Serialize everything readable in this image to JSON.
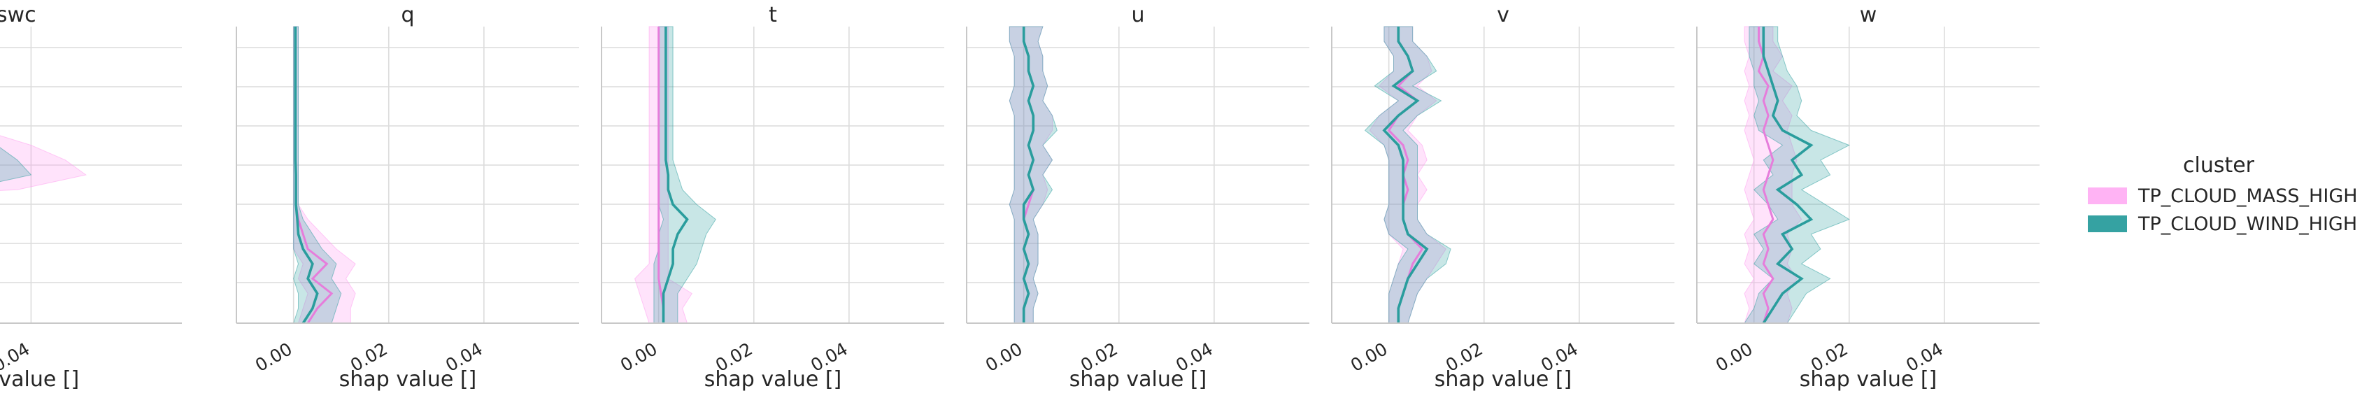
{
  "chart_data": {
    "type": "line",
    "xlabel": "shap value []",
    "xticks": [
      0.0,
      0.02,
      0.04
    ],
    "xtick_labels": [
      "0.00",
      "0.02",
      "0.04"
    ],
    "xlim": [
      -0.012,
      0.06
    ],
    "ylim": [
      0,
      1
    ],
    "grid": true,
    "legend": {
      "title": "cluster",
      "placement": "right",
      "entries": [
        {
          "name": "TP_CLOUD_MASS_HIGH",
          "color": "#ff99f0"
        },
        {
          "name": "TP_CLOUD_WIND_HIGH",
          "color": "#2a9d9d"
        }
      ]
    },
    "series_colors": {
      "mass": "#ff99f0",
      "wind": "#2a9d9d"
    },
    "panels": [
      {
        "title": "cswc",
        "xlim": [
          0.012,
          0.062
        ],
        "y": [
          0.0,
          0.05,
          0.1,
          0.15,
          0.2,
          0.25,
          0.3,
          0.35,
          0.4,
          0.45,
          0.5,
          0.55,
          0.6,
          0.65,
          0.7,
          0.75,
          0.8,
          0.85,
          0.9,
          0.95,
          1.0
        ],
        "mass": [
          -0.02,
          -0.02,
          -0.02,
          -0.02,
          -0.02,
          0.0,
          0.004,
          -0.01,
          -0.02,
          0.02,
          0.032,
          0.03,
          0.026,
          0.018,
          0.006,
          -0.01,
          -0.02,
          -0.02,
          -0.02,
          -0.02,
          -0.02
        ],
        "mass_lo": [
          -0.03,
          -0.03,
          -0.03,
          -0.03,
          -0.03,
          -0.01,
          -0.006,
          -0.02,
          -0.03,
          0.005,
          0.018,
          0.016,
          0.012,
          0.006,
          -0.004,
          -0.02,
          -0.03,
          -0.03,
          -0.03,
          -0.03,
          -0.03
        ],
        "mass_hi": [
          -0.01,
          -0.01,
          -0.01,
          -0.01,
          -0.01,
          0.01,
          0.022,
          0.0,
          -0.01,
          0.038,
          0.048,
          0.045,
          0.04,
          0.033,
          0.018,
          0.0,
          -0.01,
          -0.01,
          -0.01,
          -0.01,
          -0.01
        ],
        "wind": [
          -0.02,
          -0.02,
          -0.02,
          -0.02,
          -0.02,
          0.0,
          0.002,
          -0.01,
          -0.02,
          0.016,
          0.03,
          0.028,
          0.024,
          0.02,
          0.008,
          -0.01,
          -0.02,
          -0.02,
          -0.02,
          -0.02,
          -0.02
        ],
        "wind_lo": [
          -0.03,
          -0.03,
          -0.03,
          -0.03,
          -0.03,
          -0.01,
          -0.008,
          -0.02,
          -0.03,
          0.004,
          0.018,
          0.016,
          0.014,
          0.01,
          -0.002,
          -0.02,
          -0.03,
          -0.03,
          -0.03,
          -0.03,
          -0.03
        ],
        "wind_hi": [
          -0.01,
          -0.01,
          -0.01,
          -0.01,
          -0.01,
          0.012,
          0.03,
          0.0,
          -0.01,
          0.03,
          0.04,
          0.038,
          0.035,
          0.03,
          0.018,
          0.0,
          -0.01,
          -0.01,
          -0.01,
          -0.01,
          -0.01
        ]
      },
      {
        "title": "q",
        "y": [
          0.0,
          0.05,
          0.1,
          0.15,
          0.2,
          0.25,
          0.3,
          0.35,
          0.4,
          0.45,
          0.5,
          0.55,
          0.6,
          0.65,
          0.7,
          0.75,
          0.8,
          0.85,
          0.9,
          0.95,
          1.0
        ],
        "mass": [
          0.003,
          0.005,
          0.008,
          0.004,
          0.007,
          0.003,
          0.002,
          0.001,
          0.0005,
          0.0005,
          0.0005,
          0.0004,
          0.0004,
          0.0004,
          0.0004,
          0.0004,
          0.0004,
          0.0004,
          0.0004,
          0.0004,
          0.0004
        ],
        "mass_lo": [
          0.001,
          0.002,
          0.003,
          0.001,
          0.002,
          0.0,
          0.0,
          0.0,
          0.0,
          0.0,
          0.0,
          0.0,
          0.0,
          0.0,
          0.0,
          0.0,
          0.0,
          0.0,
          0.0,
          0.0,
          0.0
        ],
        "mass_hi": [
          0.012,
          0.012,
          0.013,
          0.011,
          0.013,
          0.009,
          0.006,
          0.003,
          0.001,
          0.001,
          0.001,
          0.001,
          0.001,
          0.001,
          0.001,
          0.001,
          0.001,
          0.001,
          0.001,
          0.001,
          0.001
        ],
        "wind": [
          0.002,
          0.004,
          0.005,
          0.003,
          0.004,
          0.002,
          0.001,
          0.0008,
          0.0005,
          0.0005,
          0.0005,
          0.0004,
          0.0004,
          0.0004,
          0.0004,
          0.0004,
          0.0004,
          0.0004,
          0.0004,
          0.0004,
          0.0004
        ],
        "wind_lo": [
          0.0,
          0.001,
          0.001,
          0.0,
          0.001,
          0.0,
          0.0,
          0.0,
          0.0,
          0.0,
          0.0,
          0.0,
          0.0,
          0.0,
          0.0,
          0.0,
          0.0,
          0.0,
          0.0,
          0.0,
          0.0
        ],
        "wind_hi": [
          0.008,
          0.009,
          0.01,
          0.008,
          0.009,
          0.006,
          0.004,
          0.002,
          0.001,
          0.001,
          0.001,
          0.001,
          0.001,
          0.001,
          0.001,
          0.001,
          0.001,
          0.001,
          0.001,
          0.001,
          0.001
        ]
      },
      {
        "title": "t",
        "y": [
          0.0,
          0.05,
          0.1,
          0.15,
          0.2,
          0.25,
          0.3,
          0.35,
          0.4,
          0.45,
          0.5,
          0.55,
          0.6,
          0.65,
          0.7,
          0.75,
          0.8,
          0.85,
          0.9,
          0.95,
          1.0
        ],
        "mass": [
          0.001,
          0.001,
          0.0005,
          0.0,
          0.0,
          0.0,
          0.0,
          0.0,
          0.0,
          0.0,
          0.0,
          0.0,
          0.0,
          0.0,
          0.0,
          0.0,
          0.0,
          0.0,
          0.0,
          0.0,
          0.0
        ],
        "mass_lo": [
          -0.002,
          -0.003,
          -0.004,
          -0.005,
          -0.002,
          -0.002,
          -0.002,
          -0.002,
          -0.002,
          -0.002,
          -0.002,
          -0.002,
          -0.002,
          -0.002,
          -0.002,
          -0.002,
          -0.002,
          -0.002,
          -0.002,
          -0.002,
          -0.002
        ],
        "mass_hi": [
          0.006,
          0.005,
          0.007,
          0.002,
          0.002,
          0.002,
          0.002,
          0.002,
          0.002,
          0.002,
          0.002,
          0.002,
          0.002,
          0.002,
          0.002,
          0.002,
          0.002,
          0.002,
          0.002,
          0.002,
          0.002
        ],
        "wind": [
          0.001,
          0.001,
          0.001,
          0.002,
          0.003,
          0.003,
          0.004,
          0.006,
          0.003,
          0.002,
          0.002,
          0.0015,
          0.0015,
          0.0015,
          0.0015,
          0.0015,
          0.0015,
          0.0015,
          0.0015,
          0.0015,
          0.0015
        ],
        "wind_lo": [
          -0.001,
          -0.001,
          -0.001,
          -0.001,
          -0.001,
          0.0,
          0.0,
          0.001,
          0.0,
          0.0,
          0.0,
          0.0,
          0.0,
          0.0,
          0.0,
          0.0,
          0.0,
          0.0,
          0.0,
          0.0,
          0.0
        ],
        "wind_hi": [
          0.004,
          0.004,
          0.004,
          0.006,
          0.008,
          0.009,
          0.01,
          0.012,
          0.008,
          0.005,
          0.004,
          0.003,
          0.003,
          0.003,
          0.003,
          0.003,
          0.003,
          0.003,
          0.003,
          0.003,
          0.003
        ]
      },
      {
        "title": "u",
        "y": [
          0.0,
          0.05,
          0.1,
          0.15,
          0.2,
          0.25,
          0.3,
          0.35,
          0.4,
          0.45,
          0.5,
          0.55,
          0.6,
          0.65,
          0.7,
          0.75,
          0.8,
          0.85,
          0.9,
          0.95,
          1.0
        ],
        "mass": [
          0.0,
          0.0,
          0.001,
          0.0,
          0.001,
          0.0,
          0.001,
          0.0,
          0.001,
          0.002,
          0.001,
          0.002,
          0.001,
          0.002,
          0.002,
          0.001,
          0.002,
          0.001,
          0.001,
          0.0,
          0.0
        ],
        "mass_lo": [
          -0.002,
          -0.002,
          -0.002,
          -0.002,
          -0.002,
          -0.002,
          -0.002,
          -0.002,
          -0.003,
          -0.002,
          -0.002,
          -0.002,
          -0.002,
          -0.002,
          -0.002,
          -0.003,
          -0.002,
          -0.002,
          -0.002,
          -0.003,
          -0.003
        ],
        "mass_hi": [
          0.002,
          0.002,
          0.003,
          0.002,
          0.003,
          0.003,
          0.003,
          0.002,
          0.004,
          0.005,
          0.004,
          0.006,
          0.004,
          0.006,
          0.006,
          0.004,
          0.005,
          0.004,
          0.004,
          0.003,
          0.004
        ],
        "wind": [
          0.0,
          0.0,
          0.001,
          0.0,
          0.001,
          0.0,
          0.001,
          0.0,
          0.0,
          0.002,
          0.001,
          0.002,
          0.001,
          0.002,
          0.002,
          0.001,
          0.002,
          0.001,
          0.001,
          0.0,
          0.0
        ],
        "wind_lo": [
          -0.002,
          -0.002,
          -0.002,
          -0.002,
          -0.002,
          -0.002,
          -0.002,
          -0.002,
          -0.003,
          -0.002,
          -0.002,
          -0.002,
          -0.002,
          -0.002,
          -0.002,
          -0.003,
          -0.002,
          -0.002,
          -0.002,
          -0.003,
          -0.003
        ],
        "wind_hi": [
          0.002,
          0.002,
          0.003,
          0.002,
          0.003,
          0.003,
          0.003,
          0.002,
          0.004,
          0.006,
          0.004,
          0.006,
          0.004,
          0.007,
          0.006,
          0.004,
          0.005,
          0.004,
          0.004,
          0.003,
          0.004
        ]
      },
      {
        "title": "v",
        "y": [
          0.0,
          0.05,
          0.1,
          0.15,
          0.2,
          0.25,
          0.3,
          0.35,
          0.4,
          0.45,
          0.5,
          0.55,
          0.6,
          0.65,
          0.7,
          0.75,
          0.8,
          0.85,
          0.9,
          0.95,
          1.0
        ],
        "mass": [
          0.002,
          0.002,
          0.003,
          0.004,
          0.005,
          0.007,
          0.004,
          0.003,
          0.003,
          0.004,
          0.003,
          0.004,
          0.003,
          0.0,
          0.002,
          0.006,
          0.002,
          0.005,
          0.004,
          0.002,
          0.002
        ],
        "mass_lo": [
          0.0,
          0.0,
          0.0,
          0.001,
          0.002,
          0.003,
          0.0,
          -0.001,
          0.0,
          0.0,
          0.0,
          0.0,
          -0.001,
          -0.004,
          -0.002,
          0.002,
          -0.002,
          0.001,
          0.001,
          -0.001,
          -0.001
        ],
        "mass_hi": [
          0.004,
          0.005,
          0.006,
          0.008,
          0.01,
          0.012,
          0.008,
          0.006,
          0.006,
          0.008,
          0.006,
          0.008,
          0.007,
          0.004,
          0.006,
          0.01,
          0.006,
          0.009,
          0.008,
          0.005,
          0.005
        ],
        "wind": [
          0.002,
          0.002,
          0.003,
          0.004,
          0.006,
          0.008,
          0.004,
          0.003,
          0.003,
          0.003,
          0.003,
          0.003,
          0.002,
          -0.001,
          0.002,
          0.006,
          0.001,
          0.005,
          0.004,
          0.002,
          0.002
        ],
        "wind_lo": [
          0.0,
          0.0,
          0.0,
          0.001,
          0.002,
          0.004,
          0.0,
          -0.001,
          0.0,
          0.0,
          0.0,
          0.0,
          -0.001,
          -0.005,
          -0.002,
          0.002,
          -0.003,
          0.001,
          0.001,
          -0.001,
          -0.001
        ],
        "wind_hi": [
          0.004,
          0.005,
          0.006,
          0.008,
          0.012,
          0.013,
          0.008,
          0.006,
          0.006,
          0.006,
          0.006,
          0.006,
          0.006,
          0.003,
          0.006,
          0.011,
          0.005,
          0.01,
          0.008,
          0.005,
          0.005
        ]
      },
      {
        "title": "w",
        "y": [
          0.0,
          0.05,
          0.1,
          0.15,
          0.2,
          0.25,
          0.3,
          0.35,
          0.4,
          0.45,
          0.5,
          0.55,
          0.6,
          0.65,
          0.7,
          0.75,
          0.8,
          0.85,
          0.9,
          0.95,
          1.0
        ],
        "mass": [
          0.002,
          0.003,
          0.002,
          0.004,
          0.002,
          0.003,
          0.002,
          0.004,
          0.003,
          0.002,
          0.003,
          0.004,
          0.003,
          0.002,
          0.003,
          0.002,
          0.003,
          0.001,
          0.002,
          0.001,
          0.001
        ],
        "mass_lo": [
          -0.002,
          -0.001,
          -0.002,
          0.0,
          -0.002,
          -0.001,
          -0.002,
          0.0,
          -0.001,
          -0.002,
          -0.001,
          0.0,
          -0.001,
          -0.002,
          -0.001,
          -0.002,
          -0.001,
          -0.002,
          -0.001,
          -0.002,
          -0.002
        ],
        "mass_hi": [
          0.007,
          0.008,
          0.007,
          0.009,
          0.007,
          0.008,
          0.007,
          0.01,
          0.008,
          0.008,
          0.008,
          0.009,
          0.008,
          0.007,
          0.008,
          0.006,
          0.008,
          0.004,
          0.006,
          0.004,
          0.004
        ],
        "wind": [
          0.002,
          0.004,
          0.006,
          0.01,
          0.005,
          0.008,
          0.006,
          0.012,
          0.009,
          0.005,
          0.01,
          0.008,
          0.012,
          0.006,
          0.004,
          0.005,
          0.004,
          0.003,
          0.002,
          0.002,
          0.002
        ],
        "wind_lo": [
          -0.002,
          0.0,
          0.001,
          0.004,
          0.0,
          0.002,
          0.0,
          0.005,
          0.003,
          0.0,
          0.004,
          0.002,
          0.006,
          0.001,
          0.0,
          0.001,
          0.0,
          0.0,
          -0.001,
          -0.001,
          -0.001
        ],
        "wind_hi": [
          0.007,
          0.009,
          0.011,
          0.016,
          0.01,
          0.014,
          0.012,
          0.02,
          0.015,
          0.01,
          0.016,
          0.014,
          0.02,
          0.012,
          0.009,
          0.01,
          0.009,
          0.007,
          0.006,
          0.005,
          0.005
        ]
      }
    ]
  }
}
